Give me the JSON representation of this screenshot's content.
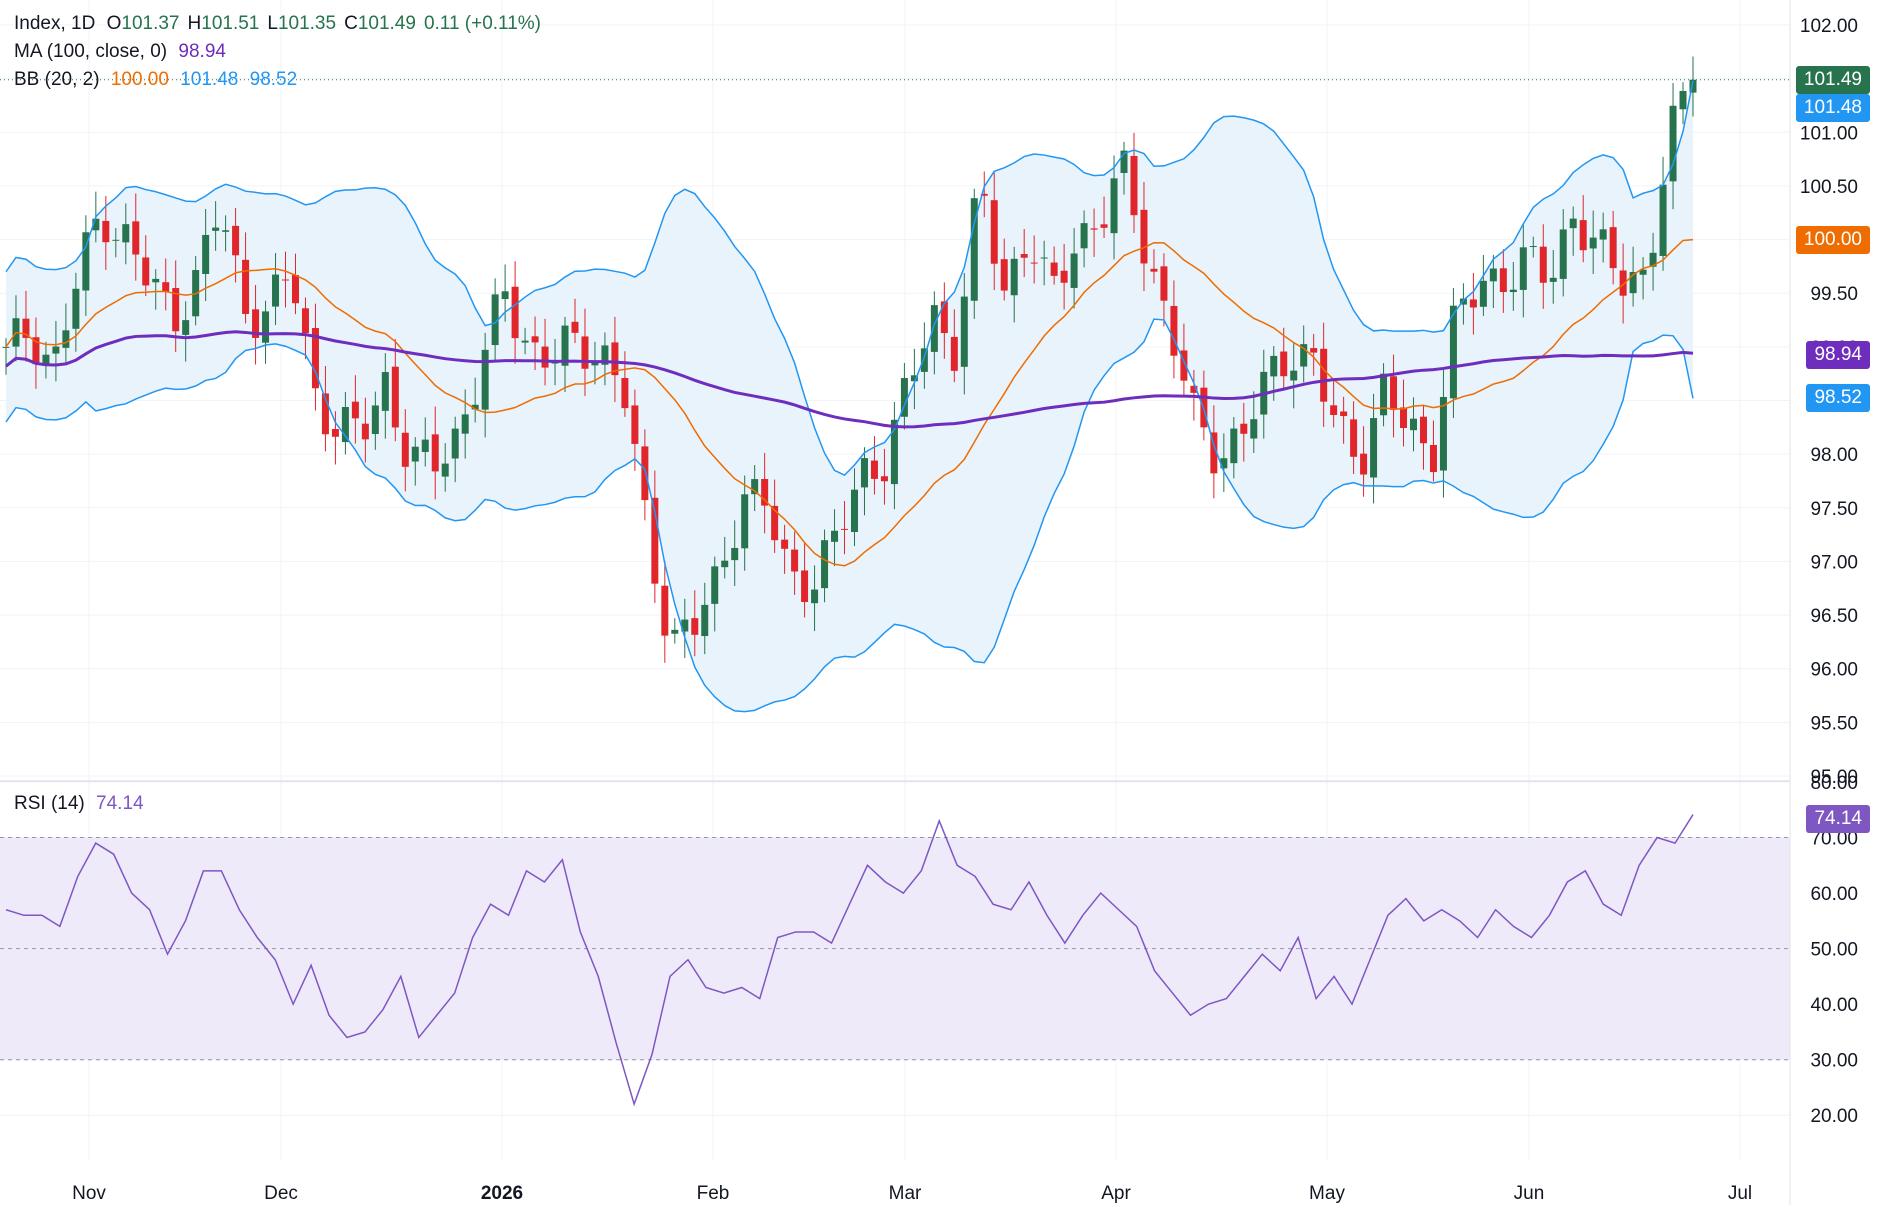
{
  "legend": {
    "symbol": "Index, 1D",
    "open_label": "O",
    "open": "101.37",
    "high_label": "H",
    "high": "101.51",
    "low_label": "L",
    "low": "101.35",
    "close_label": "C",
    "close": "101.49",
    "change": "0.11 (+0.11%)",
    "ma_label": "MA (100, close, 0)",
    "ma_value": "98.94",
    "bb_label": "BB (20, 2)",
    "bb_basis": "100.00",
    "bb_upper": "101.48",
    "bb_lower": "98.52",
    "rsi_label": "RSI (14)",
    "rsi_value": "74.14"
  },
  "price_tags": {
    "close": "101.49",
    "bb_upper": "101.48",
    "bb_basis": "100.00",
    "ma": "98.94",
    "bb_lower": "98.52",
    "rsi": "74.14"
  },
  "colors": {
    "up": "#26734d",
    "down": "#e0252b",
    "ma": "#6f2dbd",
    "bb_basis": "#ef6c00",
    "bb_band": "#2196f3",
    "bb_fill": "#e8f3fb",
    "rsi_line": "#7e57c2",
    "rsi_fill": "#efeafa",
    "close_tag": "#26734d"
  },
  "chart_data": [
    {
      "type": "candlestick",
      "title": "Index, 1D",
      "x_tick_labels": [
        "Nov",
        "Dec",
        "2026",
        "Feb",
        "Mar",
        "Apr",
        "May",
        "Jun",
        "Jul"
      ],
      "y_tick_labels": [
        "95.00",
        "95.50",
        "96.00",
        "96.50",
        "97.00",
        "97.50",
        "98.00",
        "98.50",
        "99.00",
        "99.50",
        "100.00",
        "100.50",
        "101.00",
        "101.50",
        "102.00"
      ],
      "ylim": [
        95.0,
        102.0
      ],
      "grid": true,
      "series": [
        {
          "name": "Price",
          "close_path": [
            98.9,
            99.2,
            98.8,
            99.6,
            100.3,
            100.0,
            99.6,
            99.3,
            99.6,
            100.3,
            99.4,
            99.3,
            99.7,
            98.6,
            98.2,
            98.2,
            98.7,
            97.9,
            97.9,
            98.2,
            98.8,
            99.5,
            99.0,
            98.9,
            99.0,
            99.0,
            98.6,
            97.2,
            96.3,
            96.4,
            96.8,
            97.7,
            97.5,
            96.8,
            96.9,
            97.2,
            97.8,
            98.0,
            98.6,
            99.3,
            99.0,
            100.5,
            99.5,
            100.1,
            99.4,
            100.0,
            100.2,
            100.6,
            99.9,
            99.2,
            98.3,
            98.0,
            98.2,
            98.6,
            99.0,
            98.9,
            98.2,
            98.0,
            98.6,
            98.2,
            98.0,
            99.3,
            99.5,
            99.7,
            99.8,
            99.6,
            100.3,
            99.9,
            99.6,
            99.7,
            100.9,
            101.49
          ]
        },
        {
          "name": "MA (100, close, 0)",
          "last": 98.94
        },
        {
          "name": "BB (20, 2)",
          "basis": 100.0,
          "upper": 101.48,
          "lower": 98.52
        }
      ],
      "last_ohlc": {
        "open": 101.37,
        "high": 101.51,
        "low": 101.35,
        "close": 101.49
      }
    },
    {
      "type": "line",
      "title": "RSI (14)",
      "y_tick_labels": [
        "20.00",
        "30.00",
        "40.00",
        "50.00",
        "60.00",
        "70.00",
        "80.00"
      ],
      "ylim": [
        15,
        80
      ],
      "bands": [
        30,
        50,
        70
      ],
      "series": [
        {
          "name": "RSI (14)",
          "values": [
            57,
            56,
            56,
            54,
            63,
            69,
            67,
            60,
            57,
            49,
            55,
            64,
            64,
            57,
            52,
            48,
            40,
            47,
            38,
            34,
            35,
            39,
            45,
            34,
            38,
            42,
            52,
            58,
            56,
            64,
            62,
            66,
            53,
            45,
            33,
            22,
            31,
            45,
            48,
            43,
            42,
            43,
            41,
            52,
            53,
            53,
            51,
            58,
            65,
            62,
            60,
            64,
            73,
            65,
            63,
            58,
            57,
            62,
            56,
            51,
            56,
            60,
            57,
            54,
            46,
            42,
            38,
            40,
            41,
            45,
            49,
            46,
            52,
            41,
            45,
            40,
            48,
            56,
            59,
            55,
            57,
            55,
            52,
            57,
            54,
            52,
            56,
            62,
            64,
            58,
            56,
            65,
            70,
            69,
            74.14
          ],
          "last": 74.14
        }
      ]
    }
  ]
}
